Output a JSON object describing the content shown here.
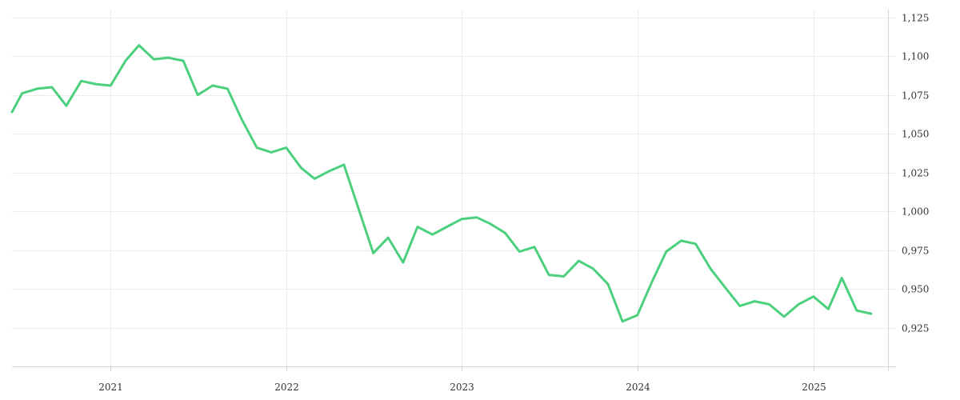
{
  "chart_data": {
    "type": "line",
    "title": "",
    "xlabel": "",
    "ylabel": "",
    "x_tick_labels": [
      "2021",
      "2022",
      "2023",
      "2024",
      "2025"
    ],
    "y_ticks": [
      0.925,
      0.95,
      0.975,
      1.0,
      1.025,
      1.05,
      1.075,
      1.1,
      1.125
    ],
    "y_tick_labels": [
      "0,925",
      "0,950",
      "0,975",
      "1,000",
      "1,025",
      "1,050",
      "1,075",
      "1,100",
      "1,125"
    ],
    "ylim": [
      0.9,
      1.13
    ],
    "xlim": [
      "2020-06-10",
      "2025-06-05"
    ],
    "grid": true,
    "y_axis_position": "right",
    "series": [
      {
        "color": "#4cd07d",
        "points": [
          [
            "2020-06-10",
            1.064
          ],
          [
            "2020-07-01",
            1.076
          ],
          [
            "2020-08-01",
            1.079
          ],
          [
            "2020-09-01",
            1.08
          ],
          [
            "2020-10-01",
            1.068
          ],
          [
            "2020-11-01",
            1.084
          ],
          [
            "2020-12-01",
            1.082
          ],
          [
            "2021-01-01",
            1.081
          ],
          [
            "2021-02-01",
            1.097
          ],
          [
            "2021-03-01",
            1.107
          ],
          [
            "2021-04-01",
            1.098
          ],
          [
            "2021-05-01",
            1.099
          ],
          [
            "2021-06-01",
            1.097
          ],
          [
            "2021-07-01",
            1.075
          ],
          [
            "2021-08-01",
            1.081
          ],
          [
            "2021-09-01",
            1.079
          ],
          [
            "2021-10-01",
            1.059
          ],
          [
            "2021-11-01",
            1.041
          ],
          [
            "2021-12-01",
            1.038
          ],
          [
            "2022-01-01",
            1.041
          ],
          [
            "2022-02-01",
            1.028
          ],
          [
            "2022-03-01",
            1.021
          ],
          [
            "2022-04-01",
            1.026
          ],
          [
            "2022-05-01",
            1.03
          ],
          [
            "2022-06-01",
            1.001
          ],
          [
            "2022-07-01",
            0.973
          ],
          [
            "2022-08-01",
            0.983
          ],
          [
            "2022-09-01",
            0.967
          ],
          [
            "2022-10-01",
            0.99
          ],
          [
            "2022-11-01",
            0.985
          ],
          [
            "2022-12-01",
            0.99
          ],
          [
            "2023-01-01",
            0.995
          ],
          [
            "2023-02-01",
            0.996
          ],
          [
            "2023-03-01",
            0.992
          ],
          [
            "2023-04-01",
            0.986
          ],
          [
            "2023-05-01",
            0.974
          ],
          [
            "2023-06-01",
            0.977
          ],
          [
            "2023-07-01",
            0.959
          ],
          [
            "2023-08-01",
            0.958
          ],
          [
            "2023-09-01",
            0.968
          ],
          [
            "2023-10-01",
            0.963
          ],
          [
            "2023-11-01",
            0.953
          ],
          [
            "2023-12-01",
            0.929
          ],
          [
            "2024-01-01",
            0.933
          ],
          [
            "2024-02-01",
            0.955
          ],
          [
            "2024-03-01",
            0.974
          ],
          [
            "2024-04-01",
            0.981
          ],
          [
            "2024-05-01",
            0.979
          ],
          [
            "2024-06-01",
            0.963
          ],
          [
            "2024-07-01",
            0.951
          ],
          [
            "2024-08-01",
            0.939
          ],
          [
            "2024-09-01",
            0.942
          ],
          [
            "2024-10-01",
            0.94
          ],
          [
            "2024-11-01",
            0.932
          ],
          [
            "2024-12-01",
            0.94
          ],
          [
            "2025-01-01",
            0.945
          ],
          [
            "2025-02-01",
            0.937
          ],
          [
            "2025-03-01",
            0.957
          ],
          [
            "2025-04-01",
            0.936
          ],
          [
            "2025-05-01",
            0.934
          ]
        ]
      }
    ]
  }
}
